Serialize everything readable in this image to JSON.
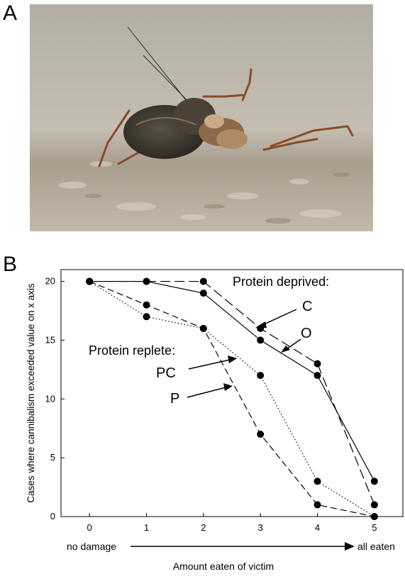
{
  "panel_a_letter": "A",
  "panel_b_letter": "B",
  "photo": {
    "subject": "cricket cannibalizing another cricket"
  },
  "chart_data": {
    "type": "line",
    "title": "",
    "xlabel": "Amount eaten of victim",
    "ylabel": "Cases where cannibalism exceeded value on x axis",
    "x": [
      0,
      1,
      2,
      3,
      4,
      5
    ],
    "xlim": [
      -0.5,
      5.5
    ],
    "ylim": [
      0,
      21
    ],
    "x_ticks": [
      "0",
      "1",
      "2",
      "3",
      "4",
      "5"
    ],
    "y_ticks": [
      "0",
      "5",
      "10",
      "15",
      "20"
    ],
    "x_start_label": "no damage",
    "x_end_label": "all eaten",
    "grid": false,
    "group_labels": {
      "deprived": "Protein deprived:",
      "replete": "Protein replete:"
    },
    "series": [
      {
        "name": "C",
        "group": "deprived",
        "style": "longdash",
        "values": [
          20,
          20,
          20,
          16,
          13,
          1
        ]
      },
      {
        "name": "O",
        "group": "deprived",
        "style": "solid",
        "values": [
          20,
          20,
          19,
          15,
          12,
          3
        ]
      },
      {
        "name": "PC",
        "group": "replete",
        "style": "dotted",
        "values": [
          20,
          17,
          16,
          12,
          3,
          0
        ]
      },
      {
        "name": "P",
        "group": "replete",
        "style": "dashed",
        "values": [
          20,
          18,
          16,
          7,
          1,
          0
        ]
      }
    ]
  }
}
